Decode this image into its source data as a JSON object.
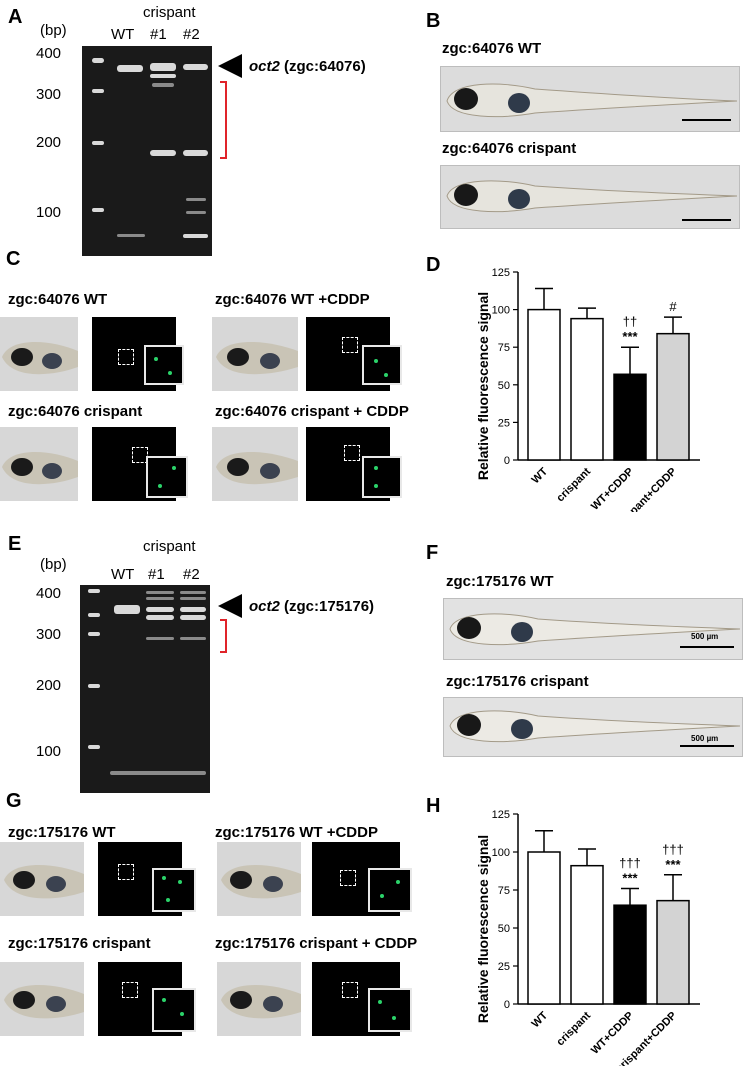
{
  "panels": {
    "A": {
      "letter": "A",
      "unit": "(bp)",
      "group_label": "crispant",
      "lanes": [
        "WT",
        "#1",
        "#2"
      ],
      "markers": [
        "400",
        "300",
        "200",
        "100"
      ],
      "arrow_label_italic": "oct2",
      "arrow_label_rest": " (zgc:64076)"
    },
    "B": {
      "letter": "B",
      "wt_title": "zgc:64076 WT",
      "crispant_title": "zgc:64076 crispant"
    },
    "C": {
      "letter": "C",
      "titles": [
        "zgc:64076 WT",
        "zgc:64076 WT +CDDP",
        "zgc:64076 crispant",
        "zgc:64076 crispant + CDDP"
      ]
    },
    "D": {
      "letter": "D"
    },
    "E": {
      "letter": "E",
      "unit": "(bp)",
      "group_label": "crispant",
      "lanes": [
        "WT",
        "#1",
        "#2"
      ],
      "markers": [
        "400",
        "300",
        "200",
        "100"
      ],
      "arrow_label_italic": "oct2",
      "arrow_label_rest": " (zgc:175176)"
    },
    "F": {
      "letter": "F",
      "wt_title": "zgc:175176 WT",
      "crispant_title": "zgc:175176 crispant",
      "scalebar": "500 µm"
    },
    "G": {
      "letter": "G",
      "titles": [
        "zgc:175176 WT",
        "zgc:175176 WT +CDDP",
        "zgc:175176 crispant",
        "zgc:175176 crispant + CDDP"
      ]
    },
    "H": {
      "letter": "H"
    }
  },
  "chart_data": [
    {
      "panel": "D",
      "type": "bar",
      "categories": [
        "WT",
        "crispant",
        "WT+CDDP",
        "crispant+CDDP"
      ],
      "values": [
        100,
        94,
        57,
        84
      ],
      "errors": [
        14,
        7,
        18,
        11
      ],
      "bar_colors": [
        "#ffffff",
        "#ffffff",
        "#000000",
        "#d3d3d3"
      ],
      "annotations": [
        [],
        [],
        [
          "††",
          "***"
        ],
        [
          "#"
        ]
      ],
      "ylabel": "Relative fluorescence signal",
      "ylim": [
        0,
        125
      ],
      "yticks": [
        "0",
        "25",
        "50",
        "75",
        "100",
        "125"
      ]
    },
    {
      "panel": "H",
      "type": "bar",
      "categories": [
        "WT",
        "crispant",
        "WT+CDDP",
        "crispant+CDDP"
      ],
      "values": [
        100,
        91,
        65,
        68
      ],
      "errors": [
        14,
        11,
        11,
        17
      ],
      "bar_colors": [
        "#ffffff",
        "#ffffff",
        "#000000",
        "#d3d3d3"
      ],
      "annotations": [
        [],
        [],
        [
          "†††",
          "***"
        ],
        [
          "†††",
          "***"
        ]
      ],
      "ylabel": "Relative fluorescence signal",
      "ylim": [
        0,
        125
      ],
      "yticks": [
        "0",
        "25",
        "50",
        "75",
        "100",
        "125"
      ]
    }
  ]
}
